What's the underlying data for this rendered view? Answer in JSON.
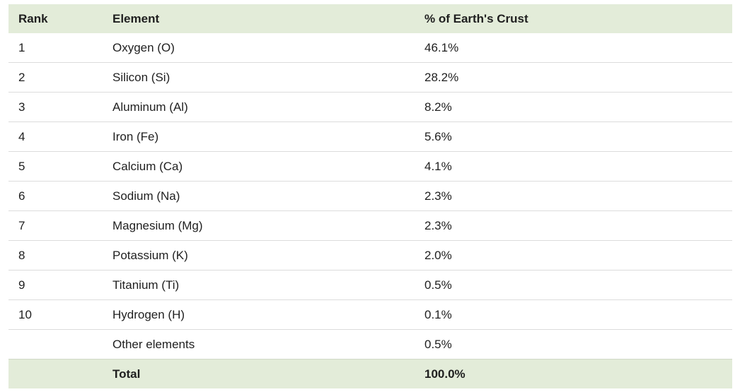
{
  "table": {
    "headers": [
      "Rank",
      "Element",
      "% of Earth's Crust"
    ],
    "rows": [
      {
        "rank": "1",
        "element": "Oxygen (O)",
        "percent": "46.1%"
      },
      {
        "rank": "2",
        "element": "Silicon (Si)",
        "percent": "28.2%"
      },
      {
        "rank": "3",
        "element": "Aluminum (Al)",
        "percent": "8.2%"
      },
      {
        "rank": "4",
        "element": "Iron (Fe)",
        "percent": "5.6%"
      },
      {
        "rank": "5",
        "element": "Calcium (Ca)",
        "percent": "4.1%"
      },
      {
        "rank": "6",
        "element": "Sodium (Na)",
        "percent": "2.3%"
      },
      {
        "rank": "7",
        "element": "Magnesium (Mg)",
        "percent": "2.3%"
      },
      {
        "rank": "8",
        "element": "Potassium (K)",
        "percent": "2.0%"
      },
      {
        "rank": "9",
        "element": "Titanium (Ti)",
        "percent": "0.5%"
      },
      {
        "rank": "10",
        "element": "Hydrogen (H)",
        "percent": "0.1%"
      },
      {
        "rank": "",
        "element": "Other elements",
        "percent": "0.5%"
      }
    ],
    "footer": {
      "rank": "",
      "element": "Total",
      "percent": "100.0%"
    }
  },
  "colors": {
    "header_bg": "#e3ecd9",
    "row_divider": "#dcdcdc"
  }
}
